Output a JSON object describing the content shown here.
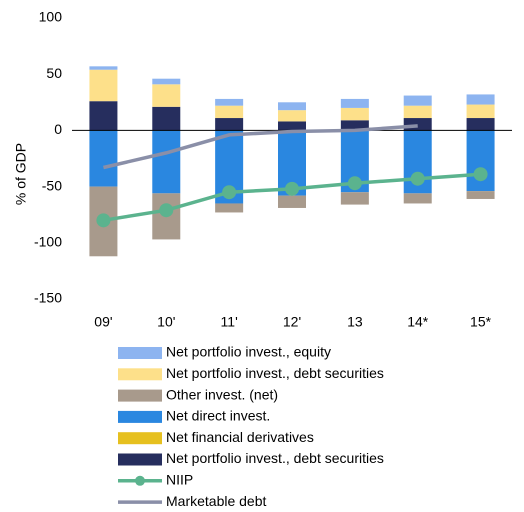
{
  "chart_data": {
    "type": "bar",
    "y_label": "% of GDP",
    "categories": [
      "09'",
      "10'",
      "11'",
      "12'",
      "13",
      "14*",
      "15*"
    ],
    "ylim": [
      -150,
      100
    ],
    "yticks": [
      -150,
      -100,
      -50,
      0,
      50,
      100
    ],
    "series": [
      {
        "name": "Net portfolio invest., equity",
        "type": "bar",
        "color": "#8db4f0",
        "values": [
          3,
          5,
          6,
          7,
          8,
          9,
          9
        ]
      },
      {
        "name": "Net portfolio invest., debt securities",
        "type": "bar",
        "color": "#fde08a",
        "values": [
          28,
          20,
          11,
          10,
          11,
          11,
          12
        ]
      },
      {
        "name": "Other invest. (net)",
        "type": "bar",
        "color": "#a89a8c",
        "values": [
          -62,
          -41,
          -8,
          -11,
          -11,
          -9,
          -7
        ]
      },
      {
        "name": "Net direct invest.",
        "type": "bar",
        "color": "#2a87e0",
        "values": [
          -50,
          -56,
          -65,
          -58,
          -55,
          -56,
          -54
        ]
      },
      {
        "name": "Net financial derivatives",
        "type": "bar",
        "color": "#e6c01f",
        "values": [
          0,
          0,
          0,
          0,
          0,
          0,
          0
        ]
      },
      {
        "name": "Net portfolio invest., debt securities",
        "type": "bar",
        "color": "#262e5e",
        "values": [
          26,
          21,
          11,
          8,
          9,
          11,
          11
        ]
      },
      {
        "name": "NIIP",
        "type": "line",
        "marker": true,
        "color": "#5bb38e",
        "values": [
          -80,
          -71,
          -55,
          -52,
          -47,
          -43,
          -39
        ]
      },
      {
        "name": "Marketable debt",
        "type": "line",
        "marker": false,
        "color": "#8a8fa8",
        "values": [
          -33,
          -20,
          -4,
          -1,
          0,
          4,
          null
        ]
      }
    ]
  }
}
